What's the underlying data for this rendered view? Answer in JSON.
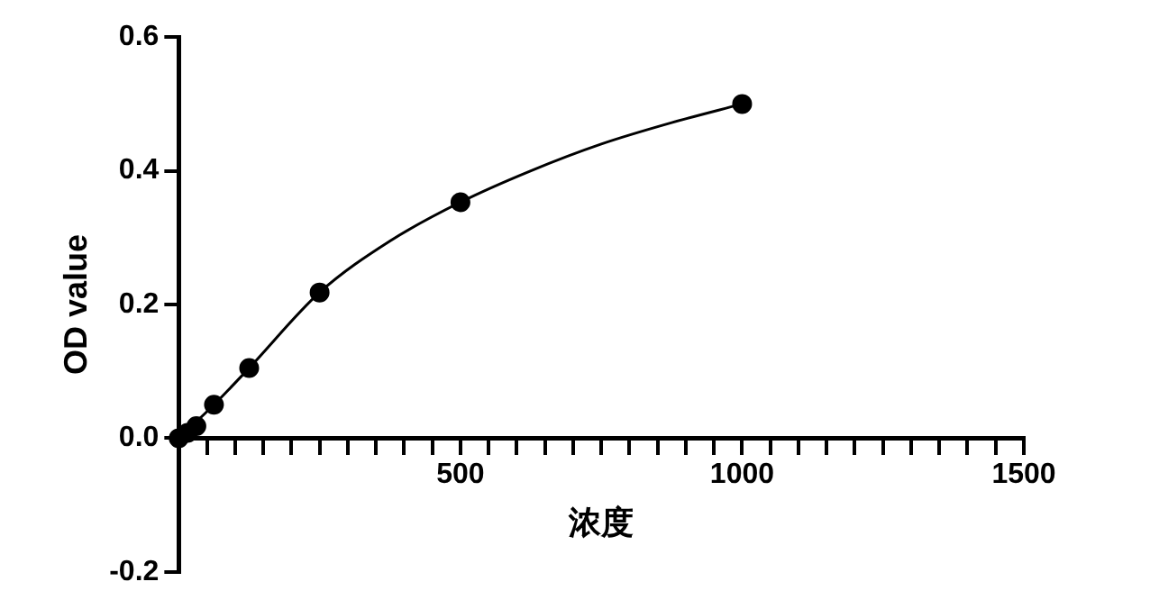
{
  "chart_data": {
    "type": "scatter",
    "xlabel": "浓度",
    "ylabel": "OD value",
    "xlim": [
      0,
      1500
    ],
    "xticks": [
      {
        "value": 0,
        "label": null
      },
      {
        "value": 50,
        "label": null
      },
      {
        "value": 100,
        "label": null
      },
      {
        "value": 150,
        "label": null
      },
      {
        "value": 200,
        "label": null
      },
      {
        "value": 250,
        "label": null
      },
      {
        "value": 300,
        "label": null
      },
      {
        "value": 350,
        "label": null
      },
      {
        "value": 400,
        "label": null
      },
      {
        "value": 450,
        "label": null
      },
      500,
      {
        "value": 550,
        "label": null
      },
      {
        "value": 600,
        "label": null
      },
      {
        "value": 650,
        "label": null
      },
      {
        "value": 700,
        "label": null
      },
      {
        "value": 750,
        "label": null
      },
      {
        "value": 800,
        "label": null
      },
      {
        "value": 850,
        "label": null
      },
      {
        "value": 900,
        "label": null
      },
      {
        "value": 950,
        "label": null
      },
      1000,
      {
        "value": 1050,
        "label": null
      },
      {
        "value": 1100,
        "label": null
      },
      {
        "value": 1150,
        "label": null
      },
      {
        "value": 1200,
        "label": null
      },
      {
        "value": 1250,
        "label": null
      },
      {
        "value": 1300,
        "label": null
      },
      {
        "value": 1350,
        "label": null
      },
      {
        "value": 1400,
        "label": null
      },
      {
        "value": 1450,
        "label": null
      },
      1500
    ],
    "ylim": [
      -0.2,
      0.6
    ],
    "yticks": [
      -0.2,
      {
        "value": 0,
        "label": "0.0"
      },
      0.2,
      0.4,
      0.6
    ],
    "series": [
      {
        "type": "scatter",
        "marker": "circle",
        "color": "#000000",
        "x": [
          0,
          15.6,
          31.25,
          62.5,
          125,
          250,
          500,
          1000
        ],
        "values": [
          0,
          0.008,
          0.018,
          0.05,
          0.105,
          0.218,
          0.353,
          0.5
        ]
      },
      {
        "type": "line",
        "marker": "none",
        "line_style": "solid",
        "color": "#000000",
        "x": [
          0,
          62.5,
          125,
          250,
          375,
          500,
          625,
          750,
          875,
          1000
        ],
        "values": [
          0,
          0.05,
          0.105,
          0.218,
          0.295,
          0.353,
          0.4,
          0.44,
          0.472,
          0.5
        ]
      }
    ]
  }
}
